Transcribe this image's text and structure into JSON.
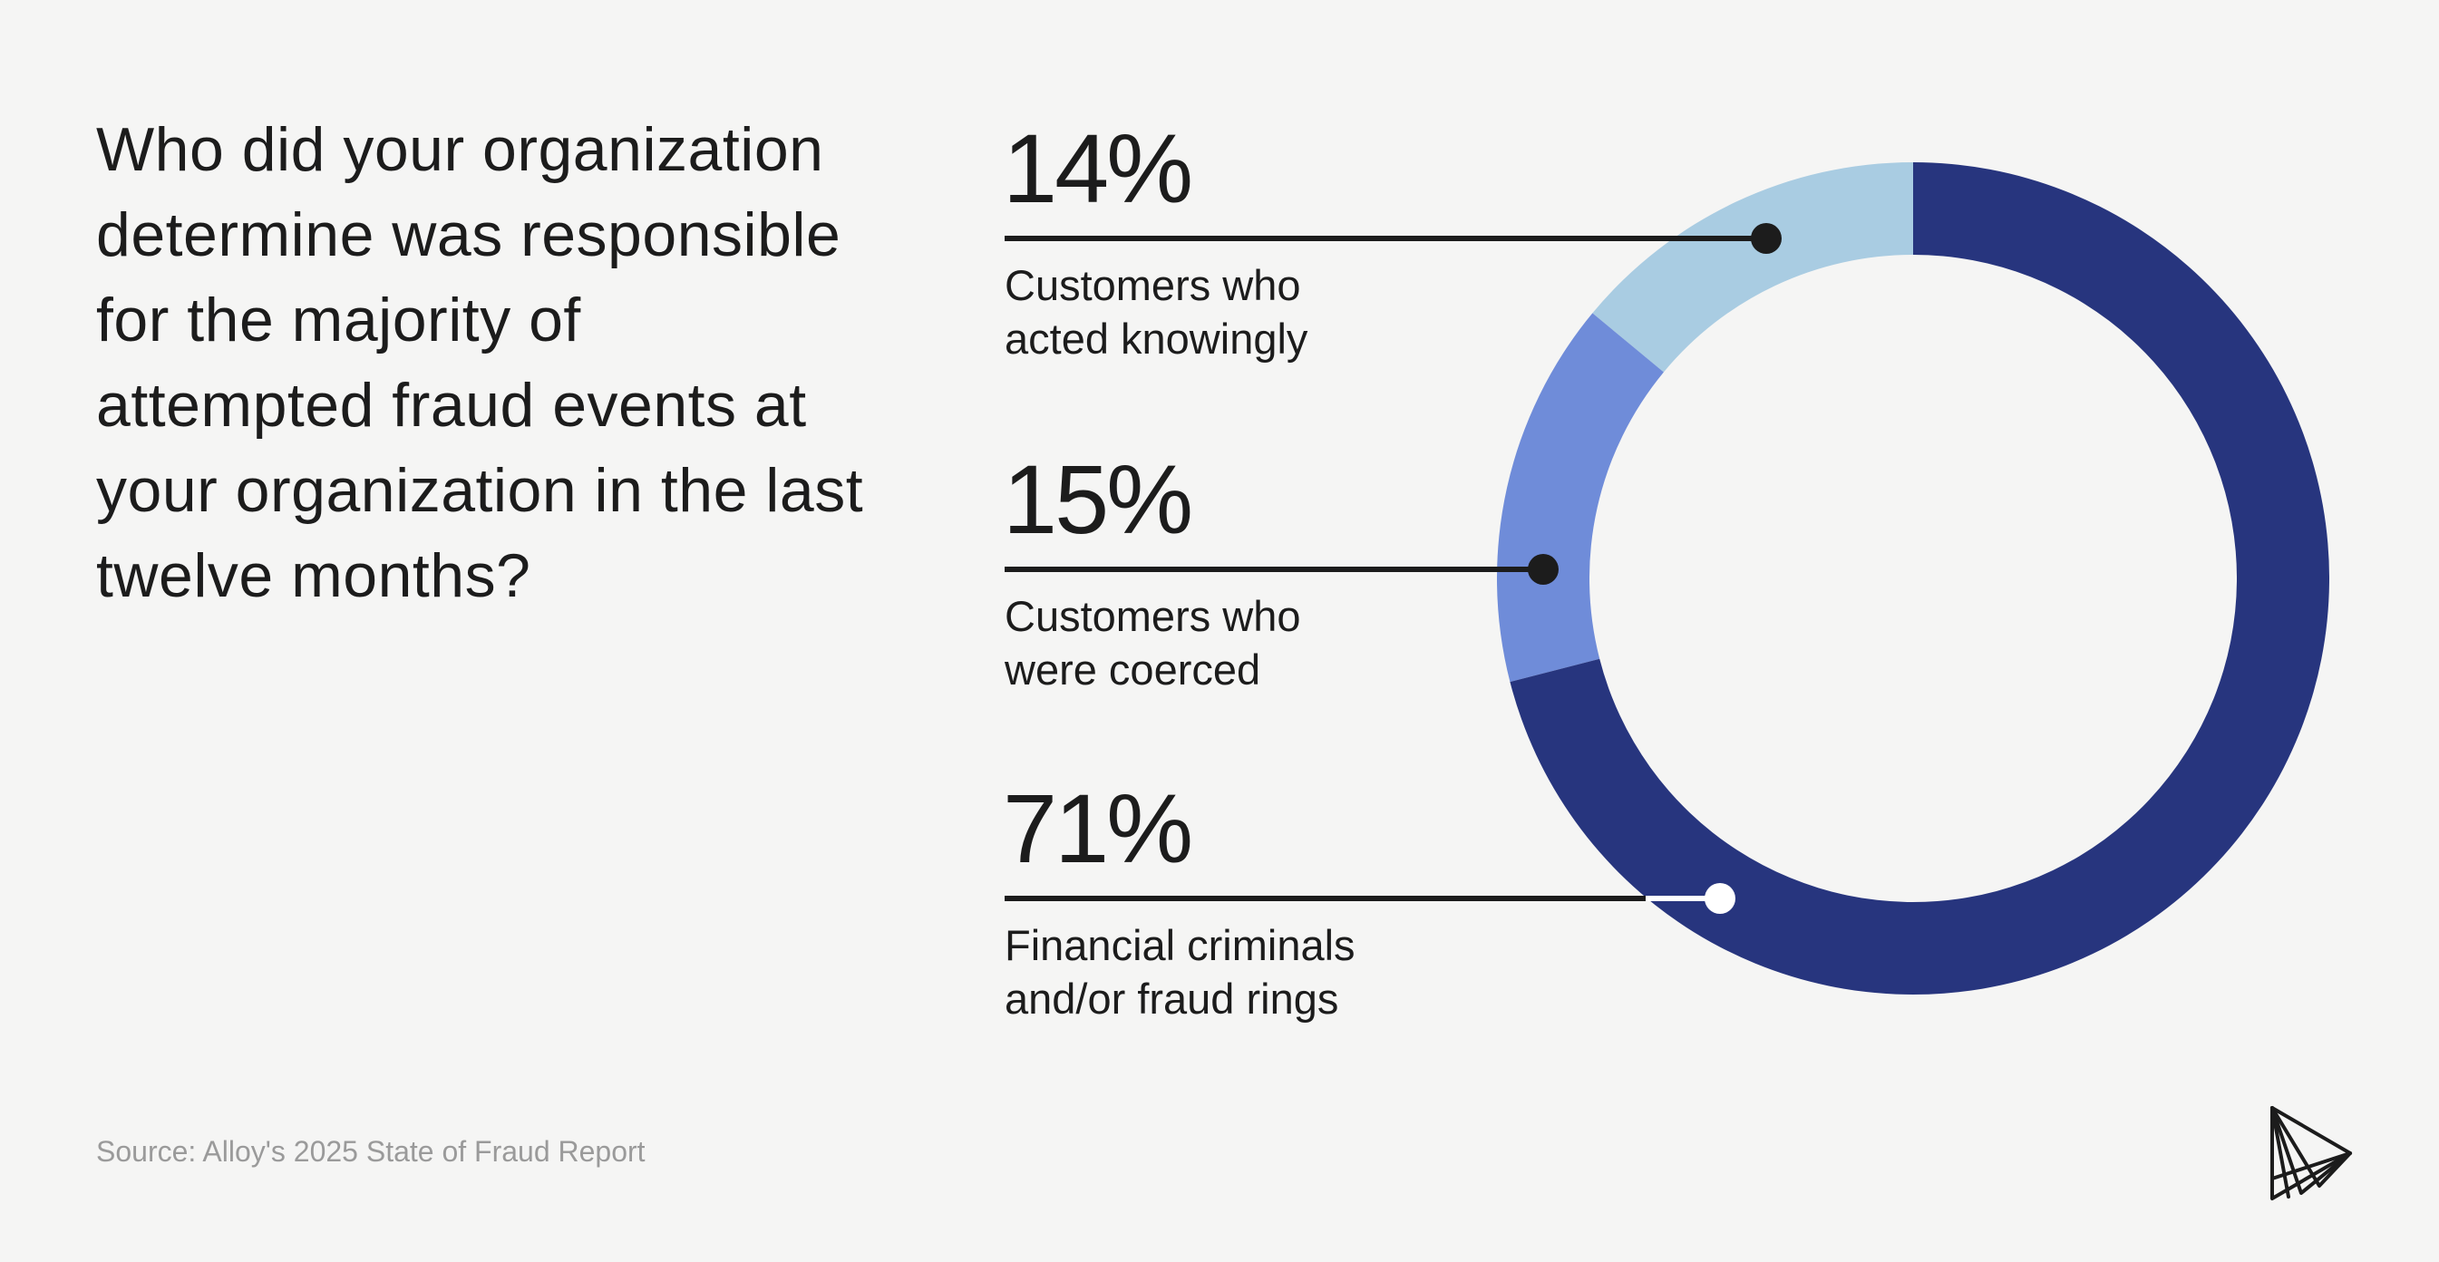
{
  "question": "Who did your organization determine was responsible for the majority of attempted fraud events at your organization in the last twelve months?",
  "source": "Source: Alloy's 2025 State of Fraud Report",
  "logo_icon": "alloy-logo-icon",
  "colors": {
    "background": "#f5f5f4",
    "text": "#1c1c1c",
    "source_text": "#9a9a9a"
  },
  "chart_data": {
    "type": "pie",
    "donut": true,
    "categories": [
      "Customers who acted knowingly",
      "Customers who were coerced",
      "Financial criminals and/or fraud rings"
    ],
    "values": [
      14,
      15,
      71
    ],
    "unit": "%",
    "slices": [
      {
        "value_label": "14%",
        "label_lines": [
          "Customers who",
          "acted knowingly"
        ],
        "color": "#a9cce2"
      },
      {
        "value_label": "15%",
        "label_lines": [
          "Customers who",
          "were coerced"
        ],
        "color": "#6f8cd9"
      },
      {
        "value_label": "71%",
        "label_lines": [
          "Financial criminals",
          "and/or fraud rings"
        ],
        "color": "#27357e"
      }
    ],
    "legend": "left"
  }
}
